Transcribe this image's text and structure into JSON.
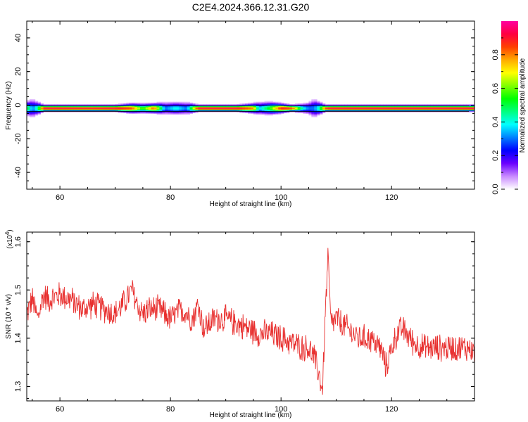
{
  "title": "C2E4.2024.366.12.31.G20",
  "chart_data": [
    {
      "type": "heatmap",
      "xlabel": "Height of straight line (km)",
      "ylabel": "Frequency (Hz)",
      "xlim": [
        54,
        135
      ],
      "ylim": [
        -50,
        50
      ],
      "x_ticks": [
        60,
        80,
        100,
        120
      ],
      "x_tick_labels": [
        "60",
        "80",
        "100",
        "120"
      ],
      "y_ticks": [
        -40,
        -20,
        0,
        20,
        40
      ],
      "y_tick_labels": [
        "-40",
        "-20",
        "0",
        "20",
        "40"
      ],
      "band_center_hz": -2,
      "profile": {
        "x": [
          54,
          55,
          56,
          57,
          60,
          65,
          70,
          73,
          75,
          77,
          79,
          81,
          83,
          84,
          85,
          88,
          92,
          95,
          96,
          98,
          100,
          102,
          104,
          105,
          106,
          107,
          108,
          109,
          112,
          118,
          125,
          130,
          134
        ],
        "amplitude": [
          0.55,
          0.3,
          0.45,
          0.95,
          0.95,
          0.93,
          0.95,
          0.85,
          0.55,
          0.85,
          0.3,
          0.4,
          0.3,
          0.6,
          0.95,
          0.95,
          0.95,
          0.8,
          0.35,
          0.55,
          0.9,
          0.88,
          0.4,
          0.3,
          0.3,
          0.45,
          0.9,
          0.95,
          0.95,
          0.95,
          0.95,
          0.95,
          0.95
        ],
        "spread_hz": [
          4,
          6,
          4,
          2,
          2,
          2,
          2,
          3,
          3,
          3,
          4,
          4,
          4,
          3,
          2,
          2,
          2,
          3,
          4,
          4,
          3,
          2,
          3,
          4,
          6,
          4,
          2,
          2,
          2,
          2,
          2,
          2,
          2
        ]
      }
    },
    {
      "type": "line",
      "xlabel": "Height of straight line (km)",
      "ylabel": "SNR (10 * v/v)",
      "scale_label": "(x10",
      "scale_exp": "4",
      "xlim": [
        54,
        135
      ],
      "ylim": [
        1.27,
        1.62
      ],
      "x_ticks": [
        60,
        80,
        100,
        120
      ],
      "x_tick_labels": [
        "60",
        "80",
        "100",
        "120"
      ],
      "y_ticks": [
        1.3,
        1.4,
        1.5,
        1.6
      ],
      "y_tick_labels": [
        "1.3",
        "1.4",
        "1.5",
        "1.6"
      ],
      "series": [
        {
          "color": "#e8302f",
          "x": [
            54,
            55,
            56,
            57,
            58,
            60,
            62,
            64,
            66,
            68,
            70,
            72,
            73,
            74,
            75,
            76,
            78,
            80,
            82,
            84,
            85,
            86,
            88,
            90,
            92,
            94,
            96,
            98,
            100,
            102,
            104,
            105,
            106,
            107,
            107.5,
            108,
            108.5,
            109,
            110,
            112,
            114,
            116,
            118,
            119,
            120,
            121,
            122,
            124,
            126,
            128,
            130,
            132,
            134,
            135
          ],
          "mean": [
            1.45,
            1.48,
            1.44,
            1.49,
            1.48,
            1.49,
            1.48,
            1.46,
            1.47,
            1.46,
            1.45,
            1.48,
            1.5,
            1.47,
            1.45,
            1.46,
            1.46,
            1.44,
            1.46,
            1.44,
            1.47,
            1.42,
            1.44,
            1.44,
            1.43,
            1.42,
            1.41,
            1.41,
            1.4,
            1.39,
            1.38,
            1.38,
            1.36,
            1.32,
            1.29,
            1.45,
            1.57,
            1.43,
            1.44,
            1.42,
            1.4,
            1.4,
            1.38,
            1.34,
            1.38,
            1.41,
            1.42,
            1.39,
            1.38,
            1.38,
            1.38,
            1.38,
            1.38,
            1.37
          ],
          "noise": 0.02
        }
      ]
    }
  ],
  "colorbar": {
    "label": "Normalized spectral amplitude",
    "ticks": [
      0.0,
      0.2,
      0.4,
      0.6,
      0.8
    ],
    "tick_labels": [
      "0.0",
      "0.2",
      "0.4",
      "0.6",
      "0.8"
    ],
    "colors": [
      "#ffffff",
      "#c98bff",
      "#6a00ff",
      "#0000ff",
      "#0080ff",
      "#00ffff",
      "#00ff80",
      "#00ff00",
      "#80ff00",
      "#ffff00",
      "#ffaa00",
      "#ff4000",
      "#ff0040",
      "#ff00a0"
    ]
  }
}
